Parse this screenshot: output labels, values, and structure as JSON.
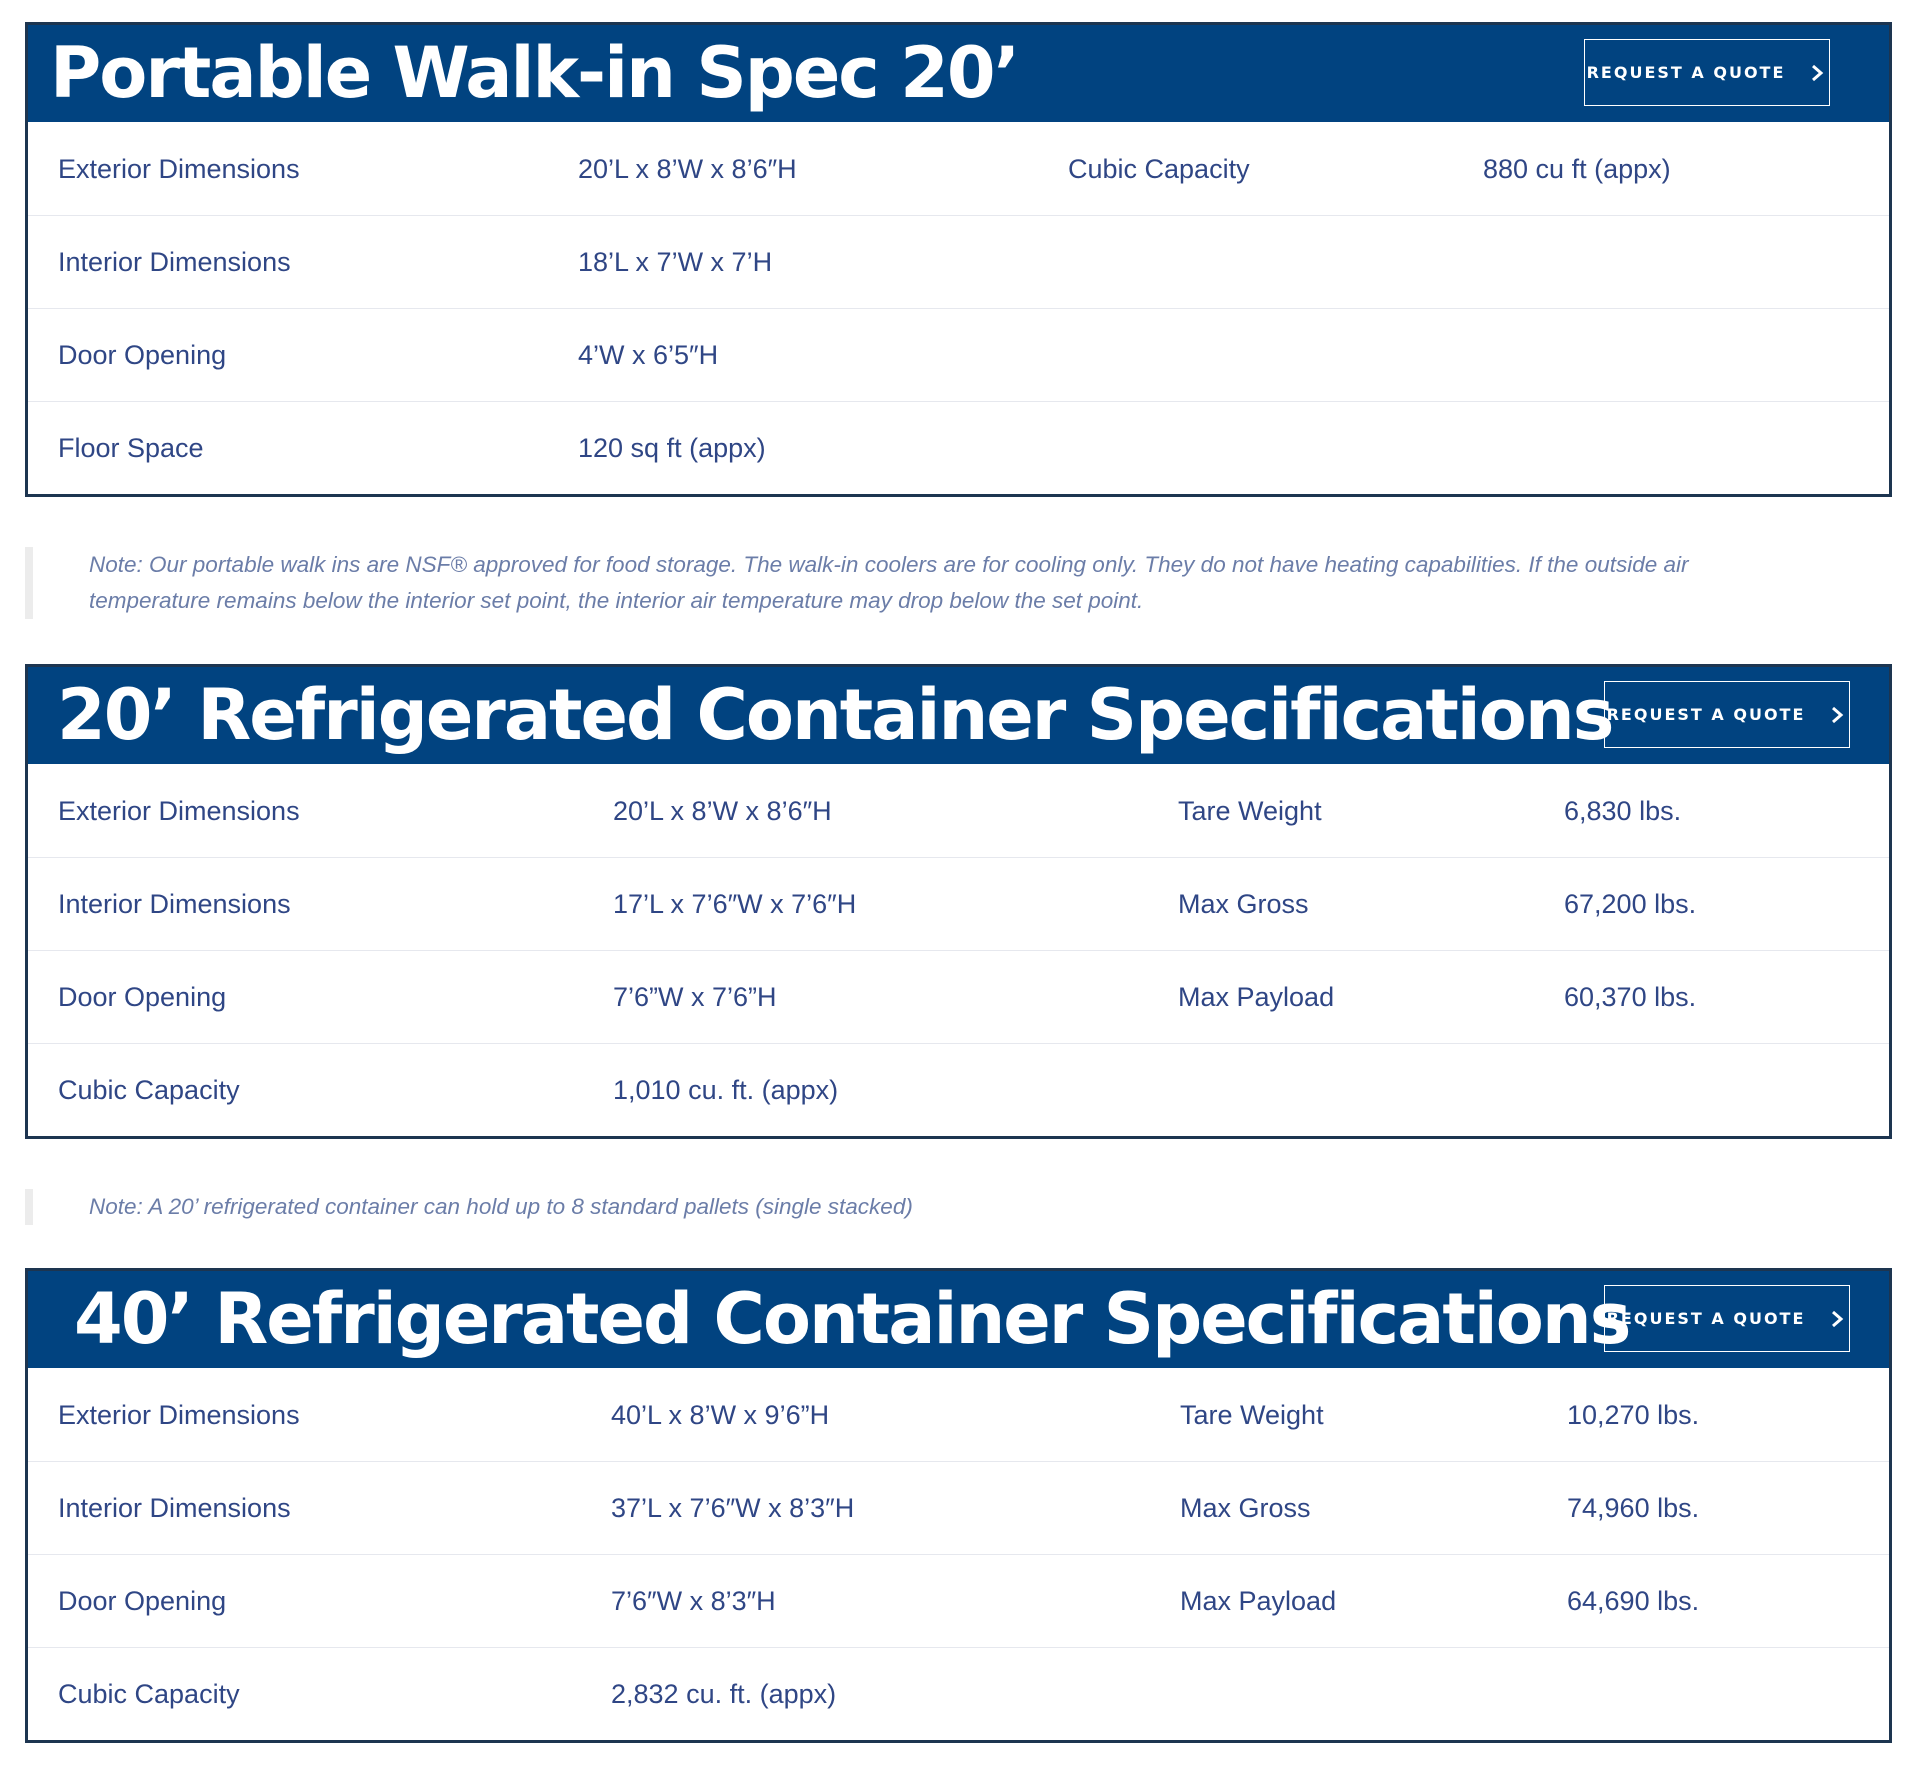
{
  "sections": [
    {
      "title": "Portable Walk-in Spec 20’",
      "button_label": "REQUEST A QUOTE",
      "rows": [
        {
          "label": "Exterior Dimensions",
          "value": "20’L x 8’W x 8’6″H",
          "label2": "Cubic Capacity",
          "value2": "880 cu ft (appx)"
        },
        {
          "label": "Interior Dimensions",
          "value": "18’L x 7’W x 7’H",
          "label2": "",
          "value2": ""
        },
        {
          "label": "Door Opening",
          "value": "4’W x 6’5″H",
          "label2": "",
          "value2": ""
        },
        {
          "label": "Floor Space",
          "value": "120 sq ft (appx)",
          "label2": "",
          "value2": ""
        }
      ]
    },
    {
      "title": "20’ Refrigerated Container Specifications",
      "button_label": "REQUEST A QUOTE",
      "rows": [
        {
          "label": "Exterior Dimensions",
          "value": "20’L x 8’W x 8’6″H",
          "label2": "Tare Weight",
          "value2": "6,830 lbs."
        },
        {
          "label": "Interior Dimensions",
          "value": "17’L x 7’6″W x 7’6″H",
          "label2": "Max Gross",
          "value2": "67,200 lbs."
        },
        {
          "label": "Door Opening",
          "value": "7’6”W x 7’6”H",
          "label2": "Max Payload",
          "value2": "60,370 lbs."
        },
        {
          "label": "Cubic Capacity",
          "value": "1,010 cu. ft. (appx)",
          "label2": "",
          "value2": ""
        }
      ]
    },
    {
      "title": "40’ Refrigerated Container Specifications",
      "button_label": "REQUEST A QUOTE",
      "rows": [
        {
          "label": "Exterior Dimensions",
          "value": "40’L x 8’W x 9’6”H",
          "label2": "Tare Weight",
          "value2": "10,270 lbs."
        },
        {
          "label": "Interior Dimensions",
          "value": "37’L x 7’6″W x 8’3″H",
          "label2": "Max Gross",
          "value2": "74,960 lbs."
        },
        {
          "label": "Door Opening",
          "value": "7’6″W x 8’3″H",
          "label2": "Max Payload",
          "value2": "64,690 lbs."
        },
        {
          "label": "Cubic Capacity",
          "value": "2,832 cu. ft. (appx)",
          "label2": "",
          "value2": ""
        }
      ]
    }
  ],
  "notes": [
    {
      "line1": "Note: Our portable walk ins are NSF® approved for food storage. The walk-in coolers are for cooling only. They do not have heating capabilities. If the outside air",
      "line2": "temperature remains below the interior set point, the interior air temperature may drop below the set point."
    },
    {
      "line1": "Note: A 20’ refrigerated container can hold up to 8 standard pallets (single stacked)",
      "line2": ""
    }
  ],
  "icons": {
    "button_icon": "chevron-right-icon"
  },
  "colors": {
    "header_bg": "#014380",
    "border": "#1d3550",
    "text": "#2f4685",
    "note_text": "#6b7da8"
  }
}
